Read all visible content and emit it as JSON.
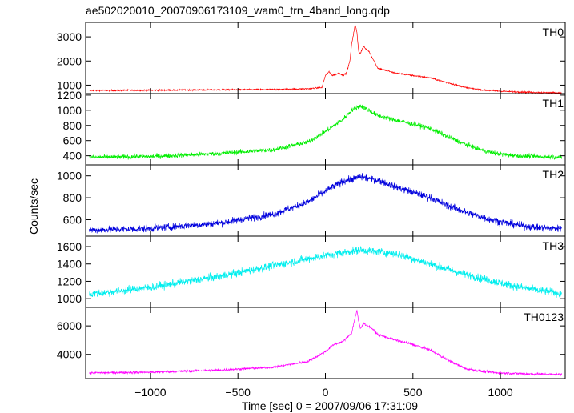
{
  "chart_data": {
    "type": "line",
    "title": "ae502020010_20070906173109_wam0_trn_4band_long.qdp",
    "xlabel": "Time [sec] 0 = 2007/09/06 17:31:09",
    "ylabel": "Counts/sec",
    "xlim": [
      -1370,
      1370
    ],
    "x_ticks": [
      -1000,
      -500,
      0,
      500,
      1000
    ],
    "x_tick_labels": [
      "−1000",
      "−500",
      "0",
      "500",
      "1000"
    ],
    "grid": false,
    "panels": [
      {
        "name": "TH0",
        "color": "#ff0000",
        "ylim": [
          650,
          3600
        ],
        "y_ticks": [
          1000,
          2000,
          3000
        ],
        "y_tick_labels": [
          "1000",
          "2000",
          "3000"
        ],
        "x": [
          -1350,
          -1000,
          -600,
          -300,
          -100,
          -20,
          0,
          20,
          40,
          60,
          80,
          100,
          120,
          140,
          150,
          160,
          170,
          180,
          190,
          200,
          210,
          220,
          230,
          250,
          270,
          300,
          400,
          500,
          600,
          700,
          800,
          900,
          1000,
          1100,
          1200,
          1350
        ],
        "values": [
          780,
          790,
          810,
          820,
          850,
          900,
          1400,
          1550,
          1400,
          1450,
          1500,
          1400,
          1500,
          2000,
          2700,
          3100,
          3500,
          3200,
          2400,
          2300,
          2500,
          2600,
          2500,
          2400,
          2100,
          1700,
          1500,
          1400,
          1300,
          1100,
          900,
          800,
          750,
          720,
          700,
          680
        ],
        "noise": 30
      },
      {
        "name": "TH1",
        "color": "#00ee00",
        "ylim": [
          280,
          1220
        ],
        "y_ticks": [
          400,
          600,
          800,
          1000,
          1200
        ],
        "y_tick_labels": [
          "400",
          "600",
          "800",
          "1000",
          "1200"
        ],
        "x": [
          -1350,
          -1000,
          -600,
          -300,
          -100,
          0,
          100,
          150,
          200,
          250,
          300,
          400,
          500,
          600,
          700,
          800,
          900,
          1000,
          1100,
          1200,
          1350
        ],
        "values": [
          380,
          390,
          430,
          480,
          580,
          720,
          880,
          1000,
          1060,
          1000,
          930,
          870,
          820,
          760,
          650,
          550,
          470,
          420,
          400,
          390,
          380
        ],
        "noise": 30
      },
      {
        "name": "TH2",
        "color": "#0000dd",
        "ylim": [
          450,
          1100
        ],
        "y_ticks": [
          600,
          800,
          1000
        ],
        "y_tick_labels": [
          "600",
          "800",
          "1000"
        ],
        "x": [
          -1350,
          -1000,
          -600,
          -300,
          -100,
          0,
          100,
          200,
          300,
          400,
          500,
          600,
          700,
          800,
          900,
          1000,
          1100,
          1200,
          1350
        ],
        "values": [
          505,
          520,
          570,
          650,
          760,
          860,
          950,
          990,
          960,
          900,
          850,
          800,
          730,
          670,
          620,
          580,
          550,
          530,
          520
        ],
        "noise": 32
      },
      {
        "name": "TH3",
        "color": "#00eeee",
        "ylim": [
          900,
          1720
        ],
        "y_ticks": [
          1000,
          1200,
          1400,
          1600
        ],
        "y_tick_labels": [
          "1000",
          "1200",
          "1400",
          "1600"
        ],
        "x": [
          -1350,
          -1000,
          -600,
          -300,
          0,
          200,
          400,
          600,
          800,
          1000,
          1200,
          1350
        ],
        "values": [
          1050,
          1130,
          1260,
          1380,
          1500,
          1560,
          1520,
          1400,
          1280,
          1180,
          1100,
          1060
        ],
        "noise": 45
      },
      {
        "name": "TH0123",
        "color": "#ff00ff",
        "ylim": [
          2300,
          7300
        ],
        "y_ticks": [
          4000,
          6000
        ],
        "y_tick_labels": [
          "4000",
          "6000"
        ],
        "x": [
          -1350,
          -1000,
          -600,
          -300,
          -100,
          0,
          50,
          100,
          150,
          170,
          180,
          190,
          200,
          220,
          240,
          260,
          300,
          400,
          500,
          600,
          700,
          800,
          900,
          1000,
          1100,
          1200,
          1350
        ],
        "values": [
          2700,
          2750,
          2900,
          3100,
          3500,
          4200,
          4700,
          4900,
          5500,
          6600,
          7100,
          6300,
          5800,
          6200,
          6000,
          5900,
          5400,
          5000,
          4700,
          4300,
          3600,
          3000,
          2800,
          2700,
          2650,
          2620,
          2600
        ],
        "noise": 80
      }
    ]
  }
}
